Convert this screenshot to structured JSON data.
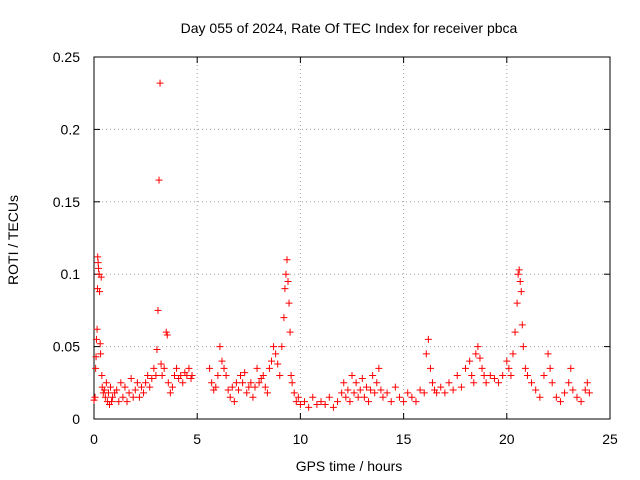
{
  "chart_data": {
    "type": "scatter",
    "title": "Day 055 of 2024, Rate Of TEC Index for receiver pbca",
    "xlabel": "GPS time / hours",
    "ylabel": "ROTI / TECUs",
    "xlim": [
      0,
      25
    ],
    "ylim": [
      0,
      0.25
    ],
    "x_ticks": [
      0,
      5,
      10,
      15,
      20,
      25
    ],
    "x_tick_labels": [
      "0",
      "5",
      "10",
      "15",
      "20",
      "25"
    ],
    "y_ticks": [
      0,
      0.05,
      0.1,
      0.15,
      0.2,
      0.25
    ],
    "y_tick_labels": [
      "0",
      "0.05",
      "0.1",
      "0.15",
      "0.2",
      "0.25"
    ],
    "grid": true,
    "marker": "+",
    "color": "#ff0000",
    "series": [
      {
        "name": "ROTI",
        "points": [
          [
            0.0,
            0.013
          ],
          [
            0.05,
            0.015
          ],
          [
            0.08,
            0.035
          ],
          [
            0.1,
            0.043
          ],
          [
            0.12,
            0.055
          ],
          [
            0.15,
            0.062
          ],
          [
            0.17,
            0.09
          ],
          [
            0.18,
            0.112
          ],
          [
            0.2,
            0.108
          ],
          [
            0.22,
            0.104
          ],
          [
            0.25,
            0.1
          ],
          [
            0.27,
            0.088
          ],
          [
            0.3,
            0.052
          ],
          [
            0.32,
            0.045
          ],
          [
            0.35,
            0.098
          ],
          [
            0.38,
            0.03
          ],
          [
            0.4,
            0.022
          ],
          [
            0.45,
            0.018
          ],
          [
            0.5,
            0.02
          ],
          [
            0.55,
            0.015
          ],
          [
            0.6,
            0.025
          ],
          [
            0.65,
            0.012
          ],
          [
            0.7,
            0.018
          ],
          [
            0.75,
            0.01
          ],
          [
            0.8,
            0.022
          ],
          [
            0.85,
            0.012
          ],
          [
            0.9,
            0.015
          ],
          [
            1.0,
            0.018
          ],
          [
            1.1,
            0.02
          ],
          [
            1.2,
            0.012
          ],
          [
            1.3,
            0.025
          ],
          [
            1.4,
            0.015
          ],
          [
            1.5,
            0.022
          ],
          [
            1.6,
            0.012
          ],
          [
            1.7,
            0.018
          ],
          [
            1.8,
            0.028
          ],
          [
            1.9,
            0.015
          ],
          [
            2.0,
            0.02
          ],
          [
            2.1,
            0.025
          ],
          [
            2.2,
            0.015
          ],
          [
            2.3,
            0.022
          ],
          [
            2.4,
            0.018
          ],
          [
            2.5,
            0.025
          ],
          [
            2.6,
            0.03
          ],
          [
            2.7,
            0.022
          ],
          [
            2.8,
            0.028
          ],
          [
            2.9,
            0.035
          ],
          [
            3.0,
            0.03
          ],
          [
            3.05,
            0.048
          ],
          [
            3.1,
            0.075
          ],
          [
            3.15,
            0.165
          ],
          [
            3.2,
            0.232
          ],
          [
            3.25,
            0.038
          ],
          [
            3.3,
            0.03
          ],
          [
            3.4,
            0.035
          ],
          [
            3.5,
            0.06
          ],
          [
            3.55,
            0.058
          ],
          [
            3.6,
            0.025
          ],
          [
            3.7,
            0.018
          ],
          [
            3.8,
            0.022
          ],
          [
            3.9,
            0.03
          ],
          [
            4.0,
            0.035
          ],
          [
            4.1,
            0.028
          ],
          [
            4.2,
            0.03
          ],
          [
            4.3,
            0.025
          ],
          [
            4.4,
            0.032
          ],
          [
            4.5,
            0.03
          ],
          [
            4.6,
            0.035
          ],
          [
            4.7,
            0.028
          ],
          [
            4.75,
            0.03
          ],
          [
            5.6,
            0.035
          ],
          [
            5.7,
            0.025
          ],
          [
            5.8,
            0.02
          ],
          [
            5.9,
            0.022
          ],
          [
            6.0,
            0.03
          ],
          [
            6.1,
            0.05
          ],
          [
            6.2,
            0.04
          ],
          [
            6.3,
            0.035
          ],
          [
            6.4,
            0.03
          ],
          [
            6.5,
            0.02
          ],
          [
            6.6,
            0.015
          ],
          [
            6.7,
            0.022
          ],
          [
            6.8,
            0.012
          ],
          [
            6.9,
            0.025
          ],
          [
            7.0,
            0.02
          ],
          [
            7.1,
            0.03
          ],
          [
            7.2,
            0.025
          ],
          [
            7.3,
            0.032
          ],
          [
            7.4,
            0.018
          ],
          [
            7.5,
            0.022
          ],
          [
            7.6,
            0.025
          ],
          [
            7.7,
            0.015
          ],
          [
            7.8,
            0.022
          ],
          [
            7.9,
            0.035
          ],
          [
            8.0,
            0.025
          ],
          [
            8.1,
            0.028
          ],
          [
            8.2,
            0.03
          ],
          [
            8.3,
            0.022
          ],
          [
            8.4,
            0.018
          ],
          [
            8.5,
            0.035
          ],
          [
            8.6,
            0.04
          ],
          [
            8.7,
            0.05
          ],
          [
            8.8,
            0.045
          ],
          [
            8.9,
            0.038
          ],
          [
            9.0,
            0.03
          ],
          [
            9.1,
            0.05
          ],
          [
            9.2,
            0.07
          ],
          [
            9.25,
            0.09
          ],
          [
            9.3,
            0.1
          ],
          [
            9.35,
            0.11
          ],
          [
            9.4,
            0.095
          ],
          [
            9.45,
            0.08
          ],
          [
            9.5,
            0.06
          ],
          [
            9.55,
            0.03
          ],
          [
            9.6,
            0.025
          ],
          [
            9.7,
            0.018
          ],
          [
            9.8,
            0.012
          ],
          [
            9.9,
            0.015
          ],
          [
            10.0,
            0.01
          ],
          [
            10.2,
            0.012
          ],
          [
            10.4,
            0.008
          ],
          [
            10.6,
            0.015
          ],
          [
            10.8,
            0.01
          ],
          [
            11.0,
            0.012
          ],
          [
            11.2,
            0.01
          ],
          [
            11.4,
            0.015
          ],
          [
            11.6,
            0.008
          ],
          [
            11.8,
            0.012
          ],
          [
            12.0,
            0.018
          ],
          [
            12.1,
            0.025
          ],
          [
            12.2,
            0.015
          ],
          [
            12.3,
            0.02
          ],
          [
            12.4,
            0.012
          ],
          [
            12.5,
            0.03
          ],
          [
            12.6,
            0.018
          ],
          [
            12.7,
            0.025
          ],
          [
            12.8,
            0.015
          ],
          [
            12.9,
            0.02
          ],
          [
            13.0,
            0.028
          ],
          [
            13.1,
            0.015
          ],
          [
            13.2,
            0.022
          ],
          [
            13.3,
            0.012
          ],
          [
            13.4,
            0.02
          ],
          [
            13.5,
            0.03
          ],
          [
            13.6,
            0.018
          ],
          [
            13.7,
            0.025
          ],
          [
            13.8,
            0.035
          ],
          [
            13.9,
            0.02
          ],
          [
            14.0,
            0.015
          ],
          [
            14.2,
            0.018
          ],
          [
            14.4,
            0.012
          ],
          [
            14.6,
            0.022
          ],
          [
            14.8,
            0.015
          ],
          [
            15.0,
            0.012
          ],
          [
            15.2,
            0.018
          ],
          [
            15.4,
            0.015
          ],
          [
            15.6,
            0.012
          ],
          [
            15.8,
            0.02
          ],
          [
            16.0,
            0.018
          ],
          [
            16.1,
            0.045
          ],
          [
            16.2,
            0.055
          ],
          [
            16.3,
            0.035
          ],
          [
            16.4,
            0.025
          ],
          [
            16.5,
            0.02
          ],
          [
            16.6,
            0.018
          ],
          [
            16.8,
            0.022
          ],
          [
            17.0,
            0.018
          ],
          [
            17.2,
            0.025
          ],
          [
            17.4,
            0.02
          ],
          [
            17.6,
            0.03
          ],
          [
            17.8,
            0.022
          ],
          [
            18.0,
            0.035
          ],
          [
            18.2,
            0.04
          ],
          [
            18.3,
            0.03
          ],
          [
            18.4,
            0.025
          ],
          [
            18.5,
            0.045
          ],
          [
            18.6,
            0.05
          ],
          [
            18.7,
            0.042
          ],
          [
            18.8,
            0.035
          ],
          [
            18.9,
            0.03
          ],
          [
            19.0,
            0.025
          ],
          [
            19.2,
            0.03
          ],
          [
            19.4,
            0.028
          ],
          [
            19.6,
            0.025
          ],
          [
            19.8,
            0.03
          ],
          [
            20.0,
            0.04
          ],
          [
            20.1,
            0.035
          ],
          [
            20.2,
            0.03
          ],
          [
            20.3,
            0.045
          ],
          [
            20.4,
            0.06
          ],
          [
            20.5,
            0.08
          ],
          [
            20.55,
            0.1
          ],
          [
            20.6,
            0.103
          ],
          [
            20.65,
            0.095
          ],
          [
            20.7,
            0.088
          ],
          [
            20.75,
            0.065
          ],
          [
            20.8,
            0.05
          ],
          [
            20.9,
            0.035
          ],
          [
            21.0,
            0.03
          ],
          [
            21.2,
            0.025
          ],
          [
            21.4,
            0.02
          ],
          [
            21.6,
            0.015
          ],
          [
            21.8,
            0.03
          ],
          [
            22.0,
            0.045
          ],
          [
            22.1,
            0.035
          ],
          [
            22.2,
            0.025
          ],
          [
            22.4,
            0.015
          ],
          [
            22.6,
            0.012
          ],
          [
            22.8,
            0.018
          ],
          [
            23.0,
            0.025
          ],
          [
            23.1,
            0.035
          ],
          [
            23.2,
            0.02
          ],
          [
            23.4,
            0.015
          ],
          [
            23.6,
            0.012
          ],
          [
            23.8,
            0.02
          ],
          [
            23.9,
            0.025
          ],
          [
            24.0,
            0.018
          ]
        ]
      }
    ]
  }
}
